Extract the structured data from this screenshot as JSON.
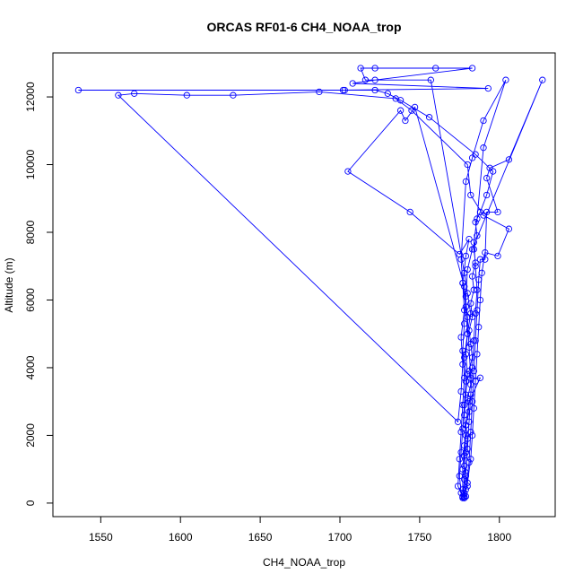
{
  "chart_data": {
    "type": "line",
    "title": "ORCAS RF01-6 CH4_NOAA_trop",
    "xlabel": "CH4_NOAA_trop",
    "ylabel": "Altitude (m)",
    "xlim": [
      1520,
      1835
    ],
    "ylim": [
      -400,
      13300
    ],
    "xticks": [
      1550,
      1600,
      1650,
      1700,
      1750,
      1800
    ],
    "yticks": [
      0,
      2000,
      4000,
      6000,
      8000,
      10000,
      12000
    ],
    "grid": false,
    "legend": "none",
    "marker": "open-circle",
    "series": [
      {
        "color": "#0000ff",
        "points": [
          [
            1778,
            150
          ],
          [
            1779,
            200
          ],
          [
            1778,
            300
          ],
          [
            1780,
            500
          ],
          [
            1779,
            800
          ],
          [
            1778,
            1100
          ],
          [
            1779,
            1500
          ],
          [
            1780,
            1900
          ],
          [
            1779,
            2300
          ],
          [
            1781,
            2700
          ],
          [
            1780,
            3100
          ],
          [
            1782,
            3500
          ],
          [
            1781,
            3900
          ],
          [
            1783,
            4300
          ],
          [
            1782,
            4700
          ],
          [
            1781,
            5100
          ],
          [
            1783,
            5500
          ],
          [
            1782,
            5900
          ],
          [
            1784,
            6300
          ],
          [
            1783,
            6700
          ],
          [
            1785,
            7100
          ],
          [
            1784,
            7500
          ],
          [
            1786,
            7900
          ],
          [
            1785,
            8300
          ],
          [
            1788,
            8600
          ],
          [
            1792,
            9100
          ],
          [
            1796,
            9800
          ],
          [
            1785,
            10300
          ],
          [
            1756,
            11400
          ],
          [
            1738,
            11900
          ],
          [
            1730,
            12100
          ],
          [
            1722,
            12200
          ],
          [
            1703,
            12200
          ],
          [
            1536,
            12200
          ],
          [
            1702,
            12200
          ],
          [
            1793,
            12250
          ],
          [
            1708,
            12400
          ],
          [
            1722,
            12500
          ],
          [
            1783,
            12850
          ],
          [
            1760,
            12850
          ],
          [
            1722,
            12850
          ],
          [
            1713,
            12850
          ],
          [
            1716,
            12500
          ],
          [
            1757,
            12500
          ],
          [
            1778,
            6800
          ],
          [
            1780,
            6200
          ],
          [
            1782,
            5600
          ],
          [
            1780,
            5000
          ],
          [
            1779,
            4400
          ],
          [
            1780,
            3800
          ],
          [
            1779,
            3200
          ],
          [
            1778,
            2600
          ],
          [
            1779,
            2000
          ],
          [
            1778,
            1400
          ],
          [
            1778,
            700
          ],
          [
            1777,
            200
          ],
          [
            1777,
            150
          ],
          [
            1778,
            300
          ],
          [
            1779,
            900
          ],
          [
            1780,
            1600
          ],
          [
            1781,
            2400
          ],
          [
            1782,
            3200
          ],
          [
            1783,
            4000
          ],
          [
            1784,
            4800
          ],
          [
            1785,
            5600
          ],
          [
            1786,
            6300
          ],
          [
            1785,
            7000
          ],
          [
            1784,
            7700
          ],
          [
            1786,
            8400
          ],
          [
            1790,
            10500
          ],
          [
            1804,
            12500
          ],
          [
            1790,
            11300
          ],
          [
            1783,
            10200
          ],
          [
            1779,
            9500
          ],
          [
            1776,
            7200
          ],
          [
            1777,
            6500
          ],
          [
            1779,
            5800
          ],
          [
            1780,
            5000
          ],
          [
            1778,
            4300
          ],
          [
            1779,
            3600
          ],
          [
            1778,
            2900
          ],
          [
            1777,
            2200
          ],
          [
            1776,
            1500
          ],
          [
            1775,
            800
          ],
          [
            1776,
            300
          ],
          [
            1778,
            200
          ],
          [
            1780,
            600
          ],
          [
            1782,
            1300
          ],
          [
            1783,
            2000
          ],
          [
            1784,
            2800
          ],
          [
            1785,
            3600
          ],
          [
            1786,
            4400
          ],
          [
            1787,
            5200
          ],
          [
            1788,
            6000
          ],
          [
            1789,
            6800
          ],
          [
            1791,
            7400
          ],
          [
            1799,
            7300
          ],
          [
            1806,
            8100
          ],
          [
            1790,
            8500
          ],
          [
            1782,
            9100
          ],
          [
            1780,
            10000
          ],
          [
            1745,
            11600
          ],
          [
            1735,
            11950
          ],
          [
            1687,
            12150
          ],
          [
            1633,
            12050
          ],
          [
            1604,
            12050
          ],
          [
            1571,
            12100
          ],
          [
            1561,
            12050
          ],
          [
            1774,
            2400
          ],
          [
            1776,
            3300
          ],
          [
            1777,
            4100
          ],
          [
            1776,
            4900
          ],
          [
            1778,
            5700
          ],
          [
            1777,
            6500
          ],
          [
            1779,
            7300
          ],
          [
            1781,
            7800
          ],
          [
            1775,
            7350
          ],
          [
            1744,
            8600
          ],
          [
            1705,
            9800
          ],
          [
            1738,
            11600
          ],
          [
            1741,
            11300
          ],
          [
            1747,
            11700
          ],
          [
            1778,
            6400
          ],
          [
            1780,
            5500
          ],
          [
            1781,
            4600
          ],
          [
            1782,
            3700
          ],
          [
            1788,
            3700
          ],
          [
            1781,
            3000
          ],
          [
            1779,
            2300
          ],
          [
            1778,
            1700
          ],
          [
            1777,
            1000
          ],
          [
            1777,
            400
          ],
          [
            1778,
            150
          ],
          [
            1779,
            400
          ],
          [
            1781,
            1200
          ],
          [
            1782,
            2100
          ],
          [
            1783,
            3000
          ],
          [
            1784,
            3900
          ],
          [
            1785,
            4800
          ],
          [
            1786,
            5700
          ],
          [
            1787,
            6600
          ],
          [
            1788,
            7200
          ],
          [
            1791,
            7200
          ],
          [
            1792,
            8600
          ],
          [
            1799,
            8600
          ],
          [
            1792,
            9600
          ],
          [
            1794,
            9900
          ],
          [
            1806,
            10150
          ],
          [
            1827,
            12500
          ],
          [
            1783,
            7500
          ],
          [
            1780,
            6900
          ],
          [
            1779,
            6100
          ],
          [
            1778,
            5300
          ],
          [
            1777,
            4500
          ],
          [
            1778,
            3700
          ],
          [
            1777,
            2900
          ],
          [
            1776,
            2100
          ],
          [
            1775,
            1300
          ],
          [
            1774,
            500
          ],
          [
            1777,
            180
          ]
        ]
      }
    ]
  }
}
